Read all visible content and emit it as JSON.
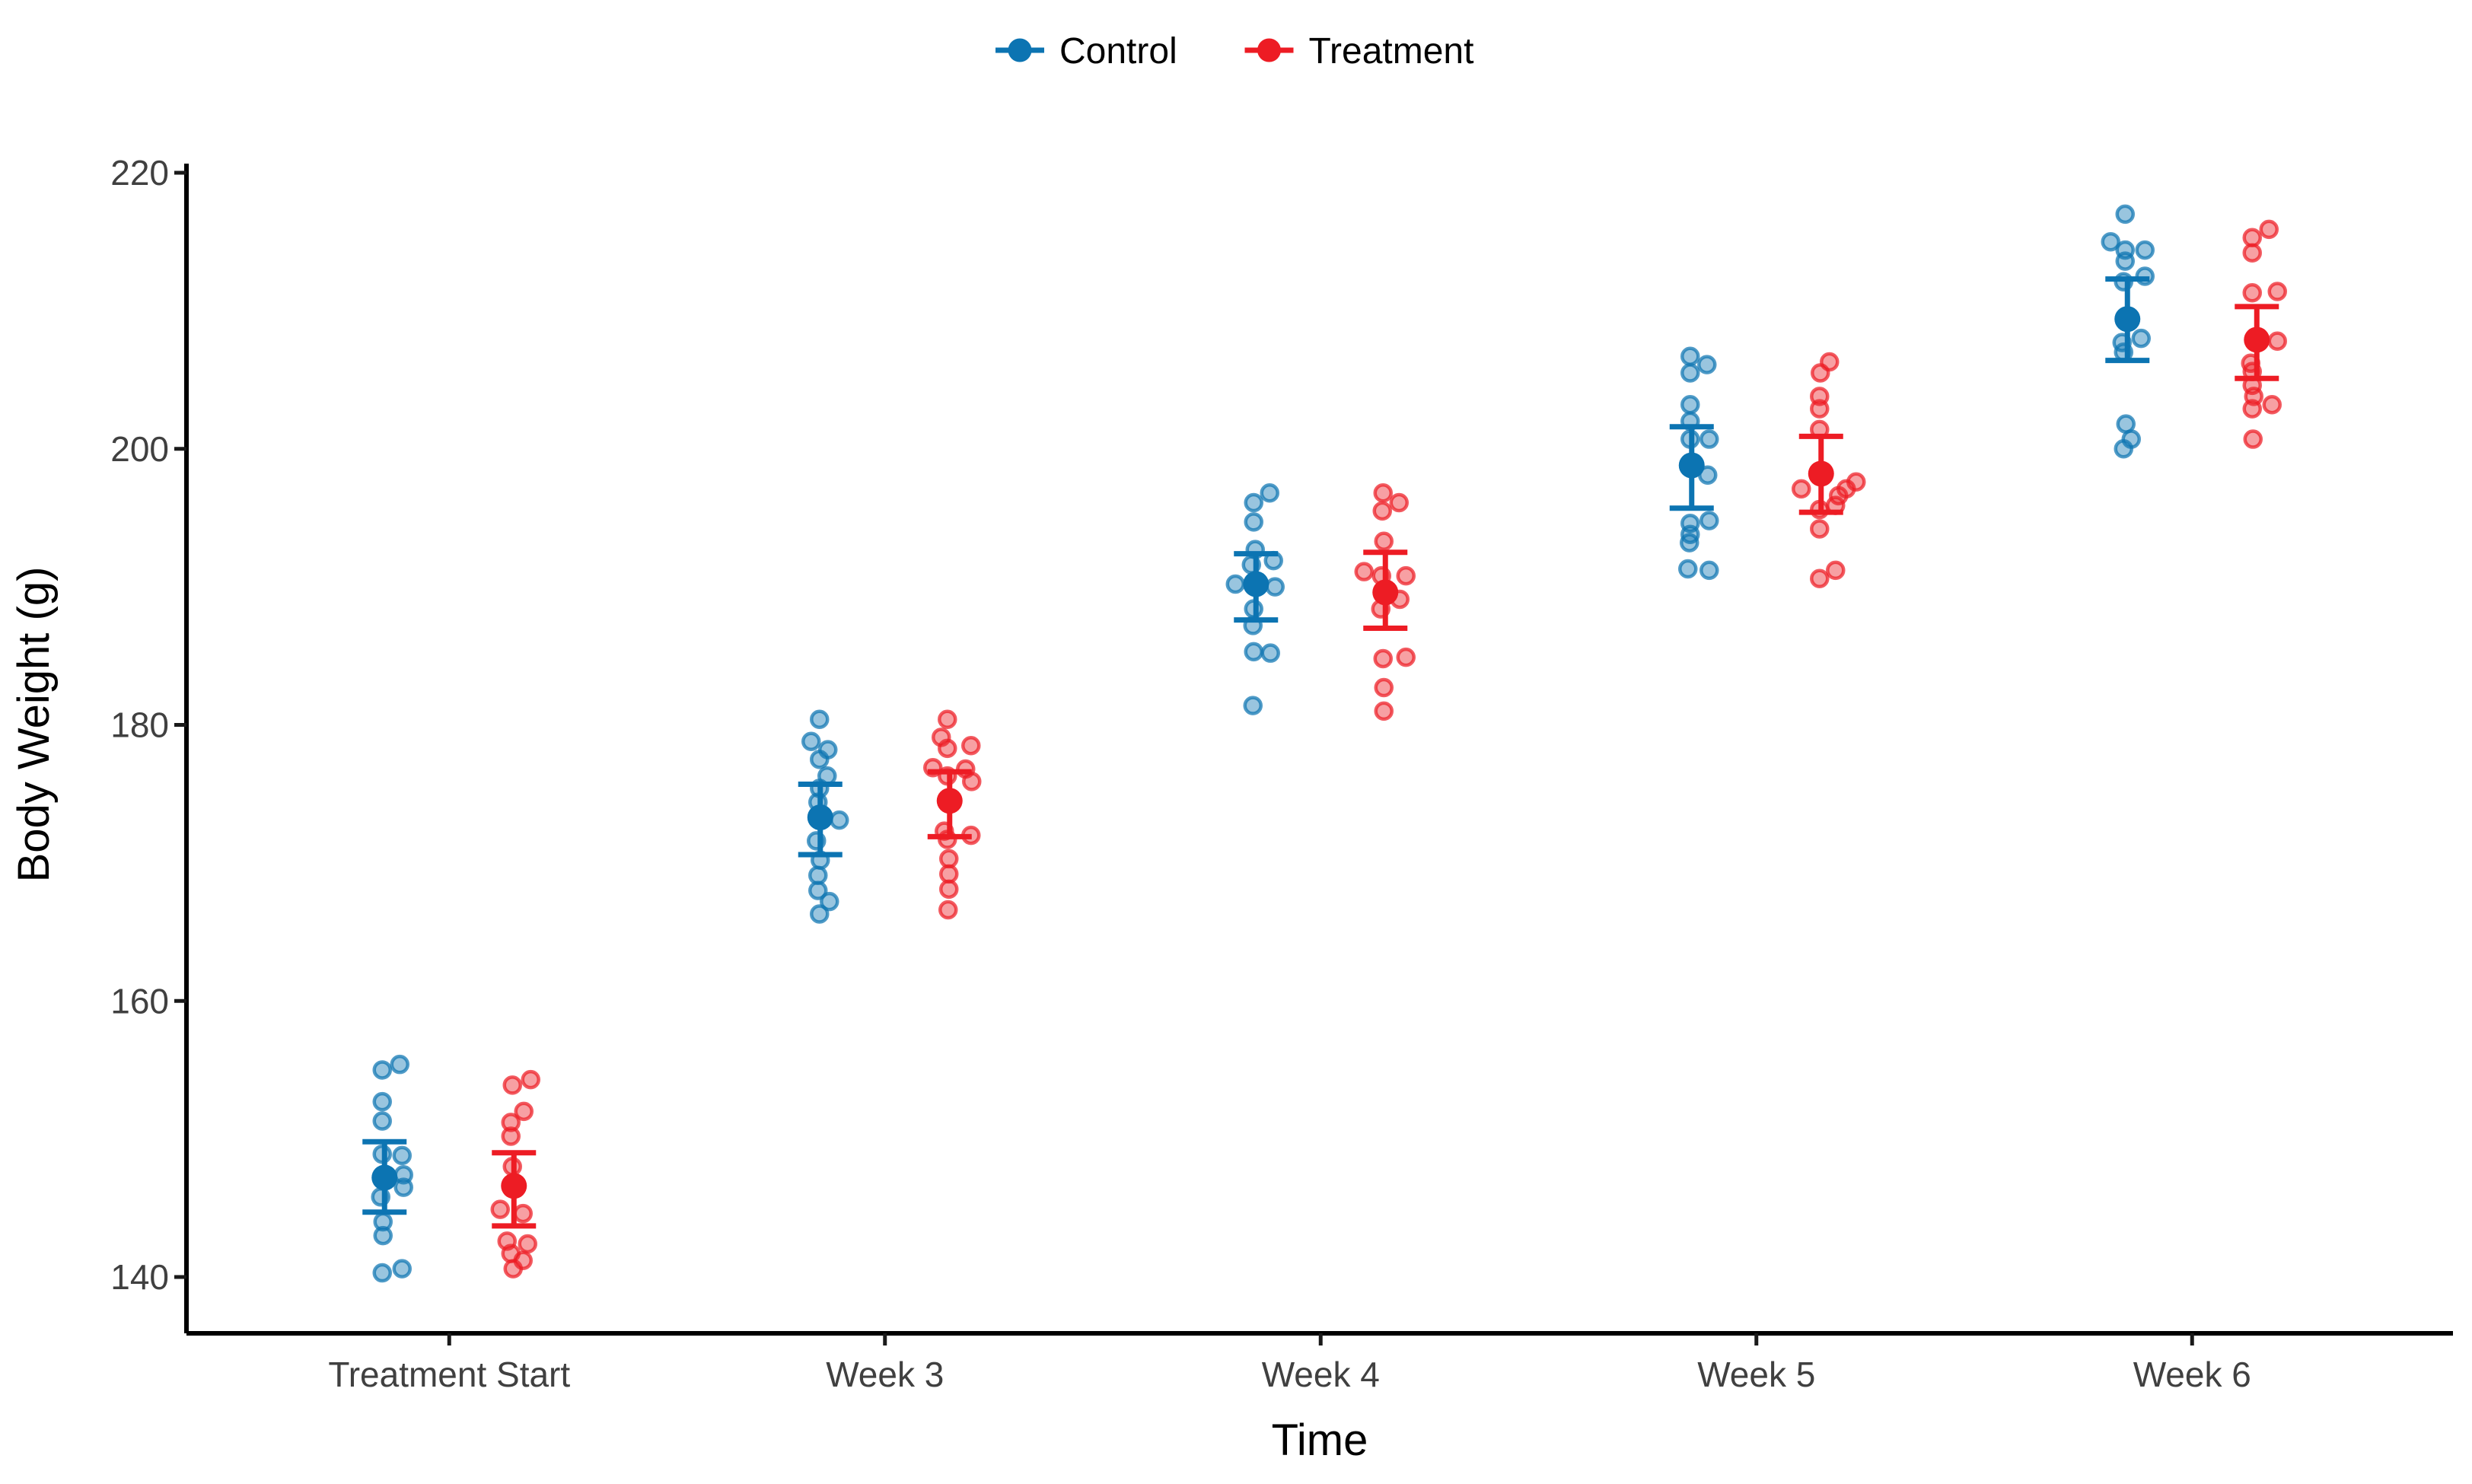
{
  "figure": {
    "background": "#ffffff",
    "text_color": "#404040",
    "axis_color": "#000000"
  },
  "legend": {
    "position": "top-center",
    "entries": [
      {
        "label": "Control",
        "color": "#0C74B2"
      },
      {
        "label": "Treatment",
        "color": "#ED1C24"
      }
    ]
  },
  "chart_data": {
    "type": "scatter",
    "subtype": "jittered points with group mean and 95% CI pointrange, dodged by group",
    "title": "",
    "xlabel": "Time",
    "ylabel": "Body Weight (g)",
    "categories": [
      "Treatment Start",
      "Week 3",
      "Week 4",
      "Week 5",
      "Week 6"
    ],
    "y_ticks": [
      140,
      160,
      180,
      200,
      220
    ],
    "ylim": [
      134,
      222
    ],
    "grid": false,
    "legend_position": "top",
    "series": [
      {
        "name": "Control",
        "color": "#0C74B2",
        "means": [
          147.2,
          173.3,
          190.2,
          198.8,
          209.4
        ],
        "ci_low": [
          144.7,
          170.6,
          187.6,
          195.7,
          206.4
        ],
        "ci_high": [
          149.8,
          175.7,
          192.4,
          201.6,
          212.3
        ],
        "points": [
          [
            {
              "dx": -3,
              "y": 155.0
            },
            {
              "dx": 20,
              "y": 155.4
            },
            {
              "dx": -3,
              "y": 152.7
            },
            {
              "dx": -3,
              "y": 151.3
            },
            {
              "dx": -3,
              "y": 148.9
            },
            {
              "dx": 23,
              "y": 148.8
            },
            {
              "dx": 25,
              "y": 147.4
            },
            {
              "dx": 25,
              "y": 146.5
            },
            {
              "dx": -5,
              "y": 145.8
            },
            {
              "dx": -2,
              "y": 144.0
            },
            {
              "dx": -2,
              "y": 143.0
            },
            {
              "dx": 23,
              "y": 140.6
            },
            {
              "dx": -3,
              "y": 140.3
            }
          ],
          [
            {
              "dx": -1,
              "y": 180.4
            },
            {
              "dx": -12,
              "y": 178.8
            },
            {
              "dx": 10,
              "y": 178.2
            },
            {
              "dx": -1,
              "y": 177.5
            },
            {
              "dx": 9,
              "y": 176.3
            },
            {
              "dx": -1,
              "y": 175.4
            },
            {
              "dx": -3,
              "y": 174.4
            },
            {
              "dx": 25,
              "y": 173.1
            },
            {
              "dx": -5,
              "y": 171.6
            },
            {
              "dx": 0,
              "y": 170.2
            },
            {
              "dx": -3,
              "y": 169.1
            },
            {
              "dx": -3,
              "y": 168.0
            },
            {
              "dx": 12,
              "y": 167.2
            },
            {
              "dx": -1,
              "y": 166.3
            }
          ],
          [
            {
              "dx": 18,
              "y": 196.8
            },
            {
              "dx": -3,
              "y": 196.1
            },
            {
              "dx": -3,
              "y": 194.7
            },
            {
              "dx": -1,
              "y": 192.7
            },
            {
              "dx": 23,
              "y": 191.9
            },
            {
              "dx": -6,
              "y": 191.6
            },
            {
              "dx": -27,
              "y": 190.2
            },
            {
              "dx": 25,
              "y": 190.0
            },
            {
              "dx": -3,
              "y": 188.4
            },
            {
              "dx": -4,
              "y": 187.2
            },
            {
              "dx": -3,
              "y": 185.3
            },
            {
              "dx": 19,
              "y": 185.2
            },
            {
              "dx": -4,
              "y": 181.4
            }
          ],
          [
            {
              "dx": -2,
              "y": 206.7
            },
            {
              "dx": 20,
              "y": 206.1
            },
            {
              "dx": -2,
              "y": 205.5
            },
            {
              "dx": -2,
              "y": 203.2
            },
            {
              "dx": -2,
              "y": 202.0
            },
            {
              "dx": -2,
              "y": 200.7
            },
            {
              "dx": 23,
              "y": 200.7
            },
            {
              "dx": 21,
              "y": 198.1
            },
            {
              "dx": 23,
              "y": 194.8
            },
            {
              "dx": -2,
              "y": 194.6
            },
            {
              "dx": -2,
              "y": 193.8
            },
            {
              "dx": -3,
              "y": 193.2
            },
            {
              "dx": -5,
              "y": 191.3
            },
            {
              "dx": 23,
              "y": 191.2
            }
          ],
          [
            {
              "dx": -3,
              "y": 217.0
            },
            {
              "dx": -22,
              "y": 215.0
            },
            {
              "dx": -3,
              "y": 214.4
            },
            {
              "dx": 23,
              "y": 214.4
            },
            {
              "dx": -3,
              "y": 213.6
            },
            {
              "dx": 23,
              "y": 212.5
            },
            {
              "dx": -5,
              "y": 212.1
            },
            {
              "dx": 18,
              "y": 208.0
            },
            {
              "dx": -7,
              "y": 207.7
            },
            {
              "dx": -5,
              "y": 207.0
            },
            {
              "dx": -2,
              "y": 201.8
            },
            {
              "dx": 5,
              "y": 200.7
            },
            {
              "dx": -5,
              "y": 200.0
            }
          ]
        ]
      },
      {
        "name": "Treatment",
        "color": "#ED1C24",
        "means": [
          146.6,
          174.5,
          189.6,
          198.2,
          207.9
        ],
        "ci_low": [
          143.7,
          171.9,
          187.0,
          195.4,
          205.1
        ],
        "ci_high": [
          149.0,
          176.6,
          192.5,
          200.9,
          210.3
        ],
        "points": [
          [
            {
              "dx": -2,
              "y": 153.9
            },
            {
              "dx": 22,
              "y": 154.3
            },
            {
              "dx": 13,
              "y": 152.0
            },
            {
              "dx": -4,
              "y": 151.2
            },
            {
              "dx": -4,
              "y": 150.2
            },
            {
              "dx": -2,
              "y": 148.0
            },
            {
              "dx": -18,
              "y": 144.9
            },
            {
              "dx": 12,
              "y": 144.6
            },
            {
              "dx": -9,
              "y": 142.6
            },
            {
              "dx": 18,
              "y": 142.4
            },
            {
              "dx": -4,
              "y": 141.7
            },
            {
              "dx": 12,
              "y": 141.2
            },
            {
              "dx": -1,
              "y": 140.6
            }
          ],
          [
            {
              "dx": -3,
              "y": 180.4
            },
            {
              "dx": -11,
              "y": 179.1
            },
            {
              "dx": 28,
              "y": 178.5
            },
            {
              "dx": -3,
              "y": 178.3
            },
            {
              "dx": -22,
              "y": 176.9
            },
            {
              "dx": 21,
              "y": 176.8
            },
            {
              "dx": -3,
              "y": 176.3
            },
            {
              "dx": 29,
              "y": 175.9
            },
            {
              "dx": -7,
              "y": 172.3
            },
            {
              "dx": 28,
              "y": 172.0
            },
            {
              "dx": -3,
              "y": 171.7
            },
            {
              "dx": -1,
              "y": 170.3
            },
            {
              "dx": -1,
              "y": 169.2
            },
            {
              "dx": -1,
              "y": 168.1
            },
            {
              "dx": -2,
              "y": 166.6
            }
          ],
          [
            {
              "dx": -3,
              "y": 196.8
            },
            {
              "dx": 18,
              "y": 196.1
            },
            {
              "dx": -4,
              "y": 195.5
            },
            {
              "dx": -2,
              "y": 193.3
            },
            {
              "dx": -28,
              "y": 191.1
            },
            {
              "dx": -5,
              "y": 190.8
            },
            {
              "dx": 27,
              "y": 190.8
            },
            {
              "dx": 19,
              "y": 189.1
            },
            {
              "dx": -6,
              "y": 188.4
            },
            {
              "dx": 27,
              "y": 184.9
            },
            {
              "dx": -3,
              "y": 184.8
            },
            {
              "dx": -2,
              "y": 182.7
            },
            {
              "dx": -2,
              "y": 181.0
            }
          ],
          [
            {
              "dx": 11,
              "y": 206.3
            },
            {
              "dx": -1,
              "y": 205.5
            },
            {
              "dx": -2,
              "y": 203.8
            },
            {
              "dx": -2,
              "y": 202.9
            },
            {
              "dx": -2,
              "y": 201.4
            },
            {
              "dx": 46,
              "y": 197.6
            },
            {
              "dx": -26,
              "y": 197.1
            },
            {
              "dx": 33,
              "y": 197.1
            },
            {
              "dx": 23,
              "y": 196.6
            },
            {
              "dx": 19,
              "y": 195.9
            },
            {
              "dx": -2,
              "y": 195.6
            },
            {
              "dx": -2,
              "y": 194.2
            },
            {
              "dx": 19,
              "y": 191.2
            },
            {
              "dx": -2,
              "y": 190.6
            }
          ],
          [
            {
              "dx": 16,
              "y": 215.9
            },
            {
              "dx": -6,
              "y": 215.3
            },
            {
              "dx": -6,
              "y": 214.2
            },
            {
              "dx": 27,
              "y": 211.4
            },
            {
              "dx": -6,
              "y": 211.3
            },
            {
              "dx": 27,
              "y": 207.8
            },
            {
              "dx": -8,
              "y": 206.2
            },
            {
              "dx": -6,
              "y": 205.6
            },
            {
              "dx": -6,
              "y": 204.6
            },
            {
              "dx": -4,
              "y": 203.8
            },
            {
              "dx": 20,
              "y": 203.2
            },
            {
              "dx": -6,
              "y": 202.9
            },
            {
              "dx": -5,
              "y": 200.7
            }
          ]
        ]
      }
    ]
  }
}
